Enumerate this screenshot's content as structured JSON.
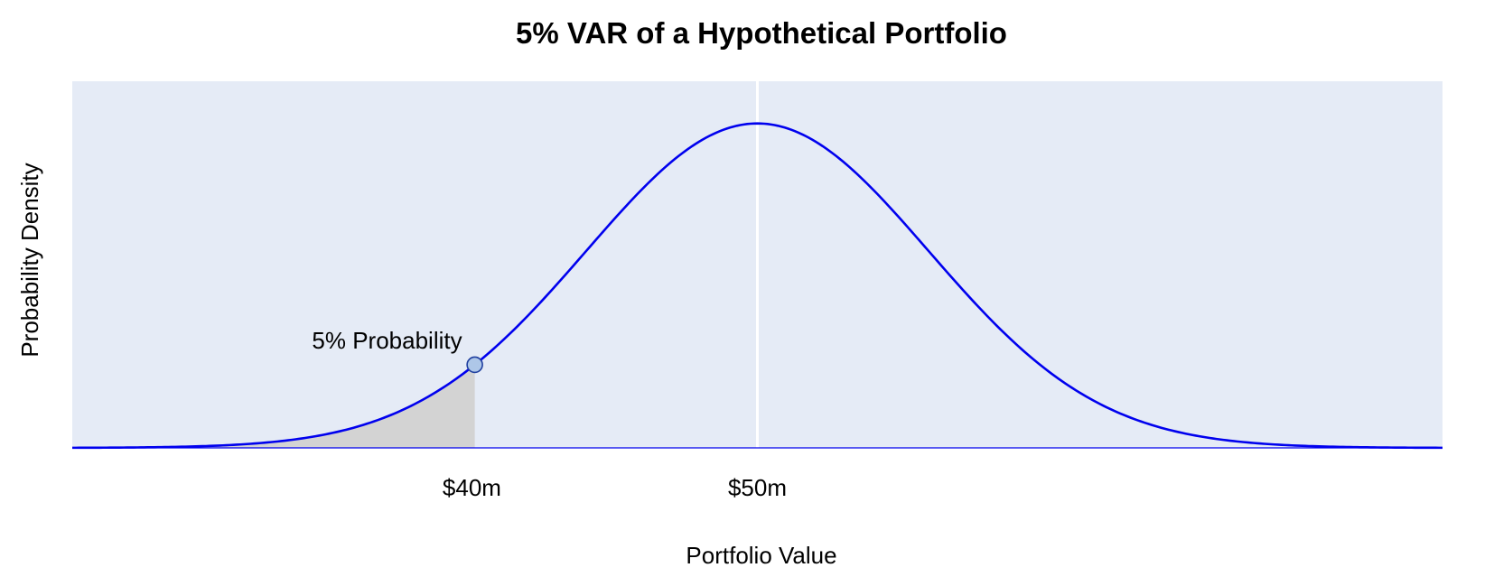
{
  "chart_data": {
    "type": "line",
    "title": "5% VAR of a Hypothetical Portfolio",
    "xlabel": "Portfolio Value",
    "ylabel": "Probability Density",
    "x_ticks": [
      {
        "value": 40,
        "label": "$40m"
      },
      {
        "value": 50,
        "label": "$50m"
      }
    ],
    "xlim": [
      26,
      74
    ],
    "ylim": [
      0,
      1.13
    ],
    "series": [
      {
        "distribution": "normal",
        "mean": 50,
        "sd": 6,
        "color": "#0000ee"
      }
    ],
    "shaded_region": {
      "from": 26,
      "to": 40.1,
      "color": "#d3d3d3"
    },
    "marker": {
      "x": 40.1,
      "label": "5% Probability",
      "fill": "#aec7e8",
      "stroke": "#1f3f9f"
    },
    "vline": {
      "x": 50,
      "color": "#ffffff"
    },
    "plot_background": "#e5ebf6",
    "grid": false,
    "legend": "none"
  }
}
